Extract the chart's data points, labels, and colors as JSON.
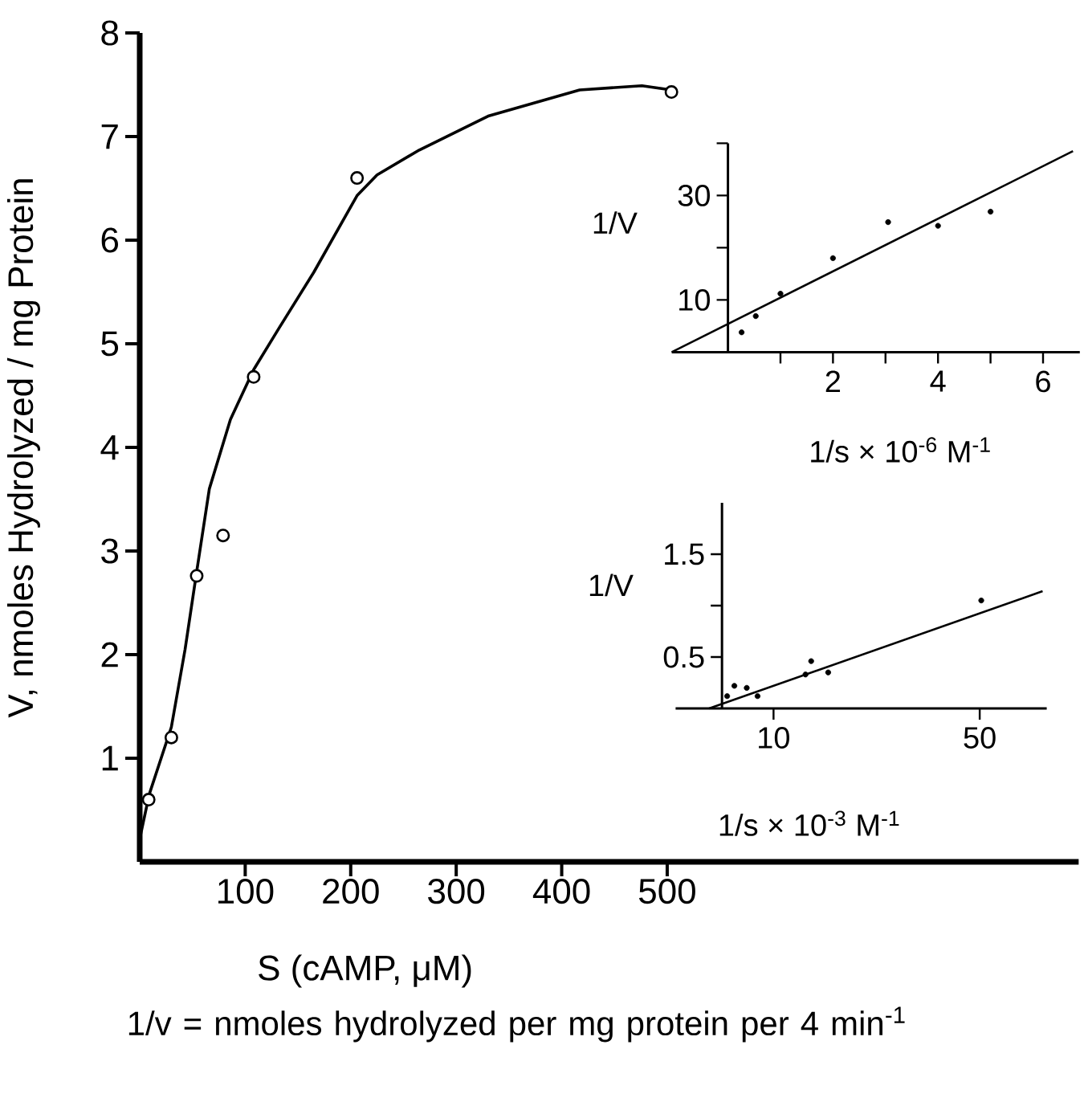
{
  "chart_data": [
    {
      "type": "scatter",
      "xlabel": "S (cAMP, μM)",
      "ylabel": "V, nmoles Hydrolyzed / mg Protein",
      "xlim": [
        0,
        890
      ],
      "ylim": [
        0,
        8
      ],
      "xticks": [
        100,
        200,
        300,
        400,
        500
      ],
      "yticks": [
        1,
        2,
        3,
        4,
        5,
        6,
        7,
        8
      ],
      "annotations": [
        "1/v = nmoles hydrolyzed per mg protein per 4 min$^{-1}$"
      ],
      "series": [
        {
          "type": "scatter",
          "marker": "circle",
          "color": "#000000",
          "x": [
            8.5,
            30,
            54,
            79,
            108,
            206,
            504
          ],
          "values": [
            0.6,
            1.2,
            2.76,
            3.15,
            4.68,
            6.6,
            7.43
          ]
        },
        {
          "type": "line",
          "color": "#000000",
          "x": [
            0,
            9,
            30,
            43,
            54,
            66,
            86,
            108,
            132,
            165,
            206,
            225,
            265,
            331,
            417,
            476,
            504
          ],
          "values": [
            0.22,
            0.65,
            1.3,
            2.05,
            2.8,
            3.6,
            4.27,
            4.75,
            5.15,
            5.69,
            6.43,
            6.63,
            6.87,
            7.2,
            7.45,
            7.49,
            7.45
          ]
        }
      ]
    },
    {
      "type": "scatter",
      "xlabel": "1/s × 10$^{-6}$ M$^{-1}$",
      "ylabel": "1/V",
      "xlim": [
        -1.07,
        6.7
      ],
      "ylim": [
        0,
        40
      ],
      "xticks": [
        {
          "value": 1,
          "label": null
        },
        2,
        {
          "value": 3,
          "label": null
        },
        4,
        {
          "value": 5,
          "label": null
        },
        6
      ],
      "yticks": [
        10,
        {
          "value": 20,
          "label": null
        },
        30,
        {
          "value": 40,
          "label": null
        }
      ],
      "series": [
        {
          "type": "scatter",
          "marker": "circle",
          "color": "#000000",
          "x": [
            0.26,
            0.53,
            1.0,
            2.0,
            3.05,
            4.0,
            5.0
          ],
          "values": [
            3.8,
            6.9,
            11.2,
            18.0,
            24.9,
            24.2,
            26.9
          ]
        },
        {
          "type": "line",
          "color": "#000000",
          "x": [
            -1.07,
            6.57
          ],
          "values": [
            0,
            38.5
          ]
        }
      ]
    },
    {
      "type": "scatter",
      "xlabel": "1/s × 10$^{-3}$ M$^{-1}$",
      "ylabel": "1/V",
      "xlim": [
        -9,
        63
      ],
      "ylim": [
        0,
        2
      ],
      "xticks": [
        10,
        50
      ],
      "yticks": [
        0.5,
        {
          "value": 1,
          "label": null
        },
        1.5
      ],
      "series": [
        {
          "type": "scatter",
          "marker": "circle",
          "color": "#000000",
          "x": [
            1,
            2.4,
            4.8,
            6.9,
            16.2,
            17.3,
            20.6,
            50.3
          ],
          "values": [
            0.12,
            0.22,
            0.2,
            0.12,
            0.33,
            0.46,
            0.35,
            1.05
          ]
        },
        {
          "type": "line",
          "color": "#000000",
          "x": [
            -2.5,
            62.2
          ],
          "values": [
            0,
            1.14
          ]
        }
      ]
    }
  ]
}
